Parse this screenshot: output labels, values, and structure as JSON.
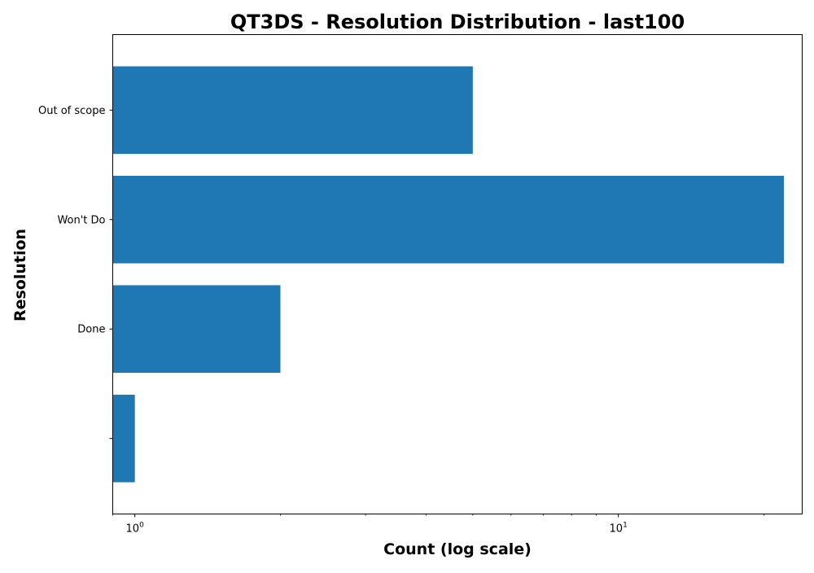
{
  "chart_data": {
    "type": "bar",
    "orientation": "horizontal",
    "title": "QT3DS - Resolution Distribution - last100",
    "xlabel": "Count (log scale)",
    "ylabel": "Resolution",
    "x_scale": "log",
    "xlim": [
      0.9,
      24
    ],
    "x_ticks": [
      {
        "value": 1,
        "base": "10",
        "exp": "0"
      },
      {
        "value": 10,
        "base": "10",
        "exp": "1"
      }
    ],
    "categories": [
      "",
      "Done",
      "Won't Do",
      "Out of scope"
    ],
    "values": [
      1,
      2,
      22,
      5
    ],
    "bar_color": "#1f77b4",
    "grid": false,
    "legend": "none"
  }
}
